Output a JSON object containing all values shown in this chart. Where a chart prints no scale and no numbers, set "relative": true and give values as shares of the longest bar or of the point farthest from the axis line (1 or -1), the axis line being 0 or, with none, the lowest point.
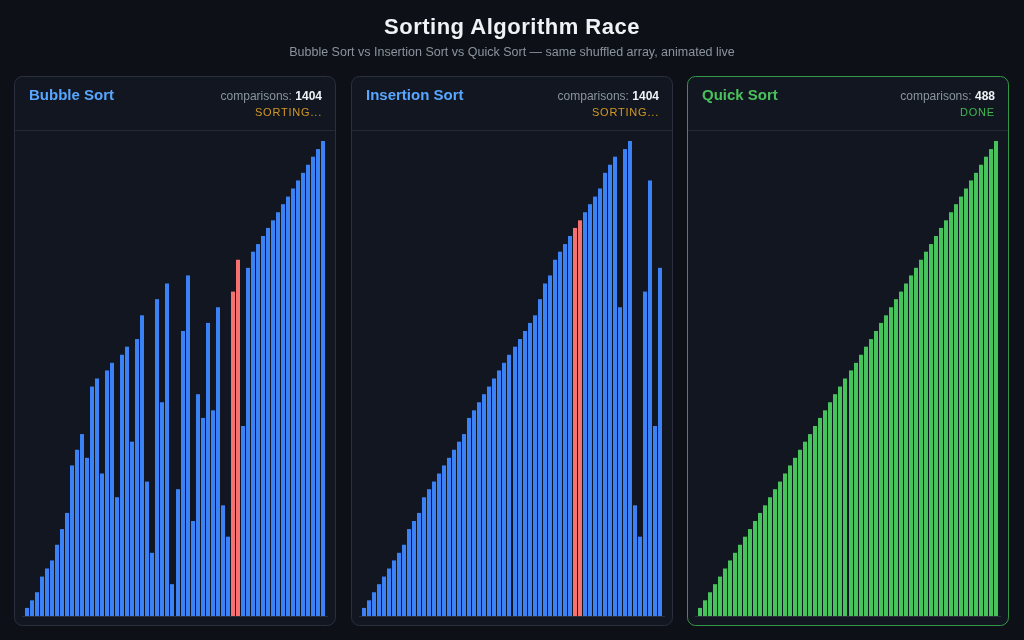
{
  "chart_data": [
    {
      "type": "other",
      "title": "Sorting Algorithm Race",
      "subtitle": "Bubble Sort vs Insertion Sort vs Quick Sort — same shuffled array, animated live"
    },
    {
      "type": "bar",
      "title": "Bubble Sort",
      "relative": true,
      "annotations": [
        "comparisons: 1404",
        "SORTING..."
      ],
      "categories": [
        null,
        null,
        null,
        null,
        null,
        null,
        null,
        null,
        null,
        null,
        null,
        null,
        null,
        null,
        null,
        null,
        null,
        null,
        null,
        null,
        null,
        null,
        null,
        null,
        null,
        null,
        null,
        null,
        null,
        null,
        null,
        null,
        null,
        null,
        null,
        null,
        null,
        null,
        null,
        null,
        null,
        null,
        null,
        null,
        null,
        null,
        null,
        null,
        null,
        null,
        null,
        null,
        null,
        null,
        null,
        null,
        null,
        null,
        null,
        null
      ],
      "values": [
        0.017,
        0.033,
        0.05,
        0.083,
        0.1,
        0.117,
        0.15,
        0.183,
        0.217,
        0.317,
        0.35,
        0.383,
        0.333,
        0.483,
        0.5,
        0.3,
        0.517,
        0.533,
        0.25,
        0.55,
        0.567,
        0.367,
        0.583,
        0.633,
        0.283,
        0.133,
        0.667,
        0.45,
        0.7,
        0.067,
        0.267,
        0.6,
        0.717,
        0.2,
        0.467,
        0.417,
        0.617,
        0.433,
        0.65,
        0.233,
        0.167,
        0.683,
        0.75,
        0.4,
        0.733,
        0.767,
        0.783,
        0.8,
        0.817,
        0.833,
        0.85,
        0.867,
        0.883,
        0.9,
        0.917,
        0.933,
        0.95,
        0.967,
        0.983,
        1
      ],
      "colors": [
        "#3b82f6",
        "#3b82f6",
        "#3b82f6",
        "#3b82f6",
        "#3b82f6",
        "#3b82f6",
        "#3b82f6",
        "#3b82f6",
        "#3b82f6",
        "#3b82f6",
        "#3b82f6",
        "#3b82f6",
        "#3b82f6",
        "#3b82f6",
        "#3b82f6",
        "#3b82f6",
        "#3b82f6",
        "#3b82f6",
        "#3b82f6",
        "#3b82f6",
        "#3b82f6",
        "#3b82f6",
        "#3b82f6",
        "#3b82f6",
        "#3b82f6",
        "#3b82f6",
        "#3b82f6",
        "#3b82f6",
        "#3b82f6",
        "#3b82f6",
        "#3b82f6",
        "#3b82f6",
        "#3b82f6",
        "#3b82f6",
        "#3b82f6",
        "#3b82f6",
        "#3b82f6",
        "#3b82f6",
        "#3b82f6",
        "#3b82f6",
        "#3b82f6",
        "#f87171",
        "#f87171",
        "#3b82f6",
        "#3b82f6",
        "#3b82f6",
        "#3b82f6",
        "#3b82f6",
        "#3b82f6",
        "#3b82f6",
        "#3b82f6",
        "#3b82f6",
        "#3b82f6",
        "#3b82f6",
        "#3b82f6",
        "#3b82f6",
        "#3b82f6",
        "#3b82f6",
        "#3b82f6",
        "#3b82f6"
      ]
    },
    {
      "type": "bar",
      "title": "Insertion Sort",
      "relative": true,
      "annotations": [
        "comparisons: 1404",
        "SORTING..."
      ],
      "categories": [
        null,
        null,
        null,
        null,
        null,
        null,
        null,
        null,
        null,
        null,
        null,
        null,
        null,
        null,
        null,
        null,
        null,
        null,
        null,
        null,
        null,
        null,
        null,
        null,
        null,
        null,
        null,
        null,
        null,
        null,
        null,
        null,
        null,
        null,
        null,
        null,
        null,
        null,
        null,
        null,
        null,
        null,
        null,
        null,
        null,
        null,
        null,
        null,
        null,
        null,
        null,
        null,
        null,
        null,
        null,
        null,
        null,
        null,
        null,
        null
      ],
      "values": [
        0.017,
        0.033,
        0.05,
        0.067,
        0.083,
        0.1,
        0.117,
        0.133,
        0.15,
        0.183,
        0.2,
        0.217,
        0.25,
        0.267,
        0.283,
        0.3,
        0.317,
        0.333,
        0.35,
        0.367,
        0.383,
        0.417,
        0.433,
        0.45,
        0.467,
        0.483,
        0.5,
        0.517,
        0.533,
        0.55,
        0.567,
        0.583,
        0.6,
        0.617,
        0.633,
        0.667,
        0.7,
        0.717,
        0.75,
        0.767,
        0.783,
        0.8,
        0.817,
        0.833,
        0.85,
        0.867,
        0.883,
        0.9,
        0.933,
        0.95,
        0.967,
        0.65,
        0.983,
        1,
        0.233,
        0.167,
        0.683,
        0.917,
        0.4,
        0.733
      ],
      "colors": [
        "#3b82f6",
        "#3b82f6",
        "#3b82f6",
        "#3b82f6",
        "#3b82f6",
        "#3b82f6",
        "#3b82f6",
        "#3b82f6",
        "#3b82f6",
        "#3b82f6",
        "#3b82f6",
        "#3b82f6",
        "#3b82f6",
        "#3b82f6",
        "#3b82f6",
        "#3b82f6",
        "#3b82f6",
        "#3b82f6",
        "#3b82f6",
        "#3b82f6",
        "#3b82f6",
        "#3b82f6",
        "#3b82f6",
        "#3b82f6",
        "#3b82f6",
        "#3b82f6",
        "#3b82f6",
        "#3b82f6",
        "#3b82f6",
        "#3b82f6",
        "#3b82f6",
        "#3b82f6",
        "#3b82f6",
        "#3b82f6",
        "#3b82f6",
        "#3b82f6",
        "#3b82f6",
        "#3b82f6",
        "#3b82f6",
        "#3b82f6",
        "#3b82f6",
        "#3b82f6",
        "#f87171",
        "#f87171",
        "#3b82f6",
        "#3b82f6",
        "#3b82f6",
        "#3b82f6",
        "#3b82f6",
        "#3b82f6",
        "#3b82f6",
        "#3b82f6",
        "#3b82f6",
        "#3b82f6",
        "#3b82f6",
        "#3b82f6",
        "#3b82f6",
        "#3b82f6",
        "#3b82f6",
        "#3b82f6"
      ]
    },
    {
      "type": "bar",
      "title": "Quick Sort",
      "relative": true,
      "annotations": [
        "comparisons: 488",
        "DONE"
      ],
      "categories": [
        null,
        null,
        null,
        null,
        null,
        null,
        null,
        null,
        null,
        null,
        null,
        null,
        null,
        null,
        null,
        null,
        null,
        null,
        null,
        null,
        null,
        null,
        null,
        null,
        null,
        null,
        null,
        null,
        null,
        null,
        null,
        null,
        null,
        null,
        null,
        null,
        null,
        null,
        null,
        null,
        null,
        null,
        null,
        null,
        null,
        null,
        null,
        null,
        null,
        null,
        null,
        null,
        null,
        null,
        null,
        null,
        null,
        null,
        null,
        null
      ],
      "values": [
        0.017,
        0.033,
        0.05,
        0.067,
        0.083,
        0.1,
        0.117,
        0.133,
        0.15,
        0.167,
        0.183,
        0.2,
        0.217,
        0.233,
        0.25,
        0.267,
        0.283,
        0.3,
        0.317,
        0.333,
        0.35,
        0.367,
        0.383,
        0.4,
        0.417,
        0.433,
        0.45,
        0.467,
        0.483,
        0.5,
        0.517,
        0.533,
        0.55,
        0.567,
        0.583,
        0.6,
        0.617,
        0.633,
        0.65,
        0.667,
        0.683,
        0.7,
        0.717,
        0.733,
        0.75,
        0.767,
        0.783,
        0.8,
        0.817,
        0.833,
        0.85,
        0.867,
        0.883,
        0.9,
        0.917,
        0.933,
        0.95,
        0.967,
        0.983,
        1
      ],
      "colors": [
        "#46c35a",
        "#46c35a",
        "#46c35a",
        "#46c35a",
        "#46c35a",
        "#46c35a",
        "#46c35a",
        "#46c35a",
        "#46c35a",
        "#46c35a",
        "#46c35a",
        "#46c35a",
        "#46c35a",
        "#46c35a",
        "#46c35a",
        "#46c35a",
        "#46c35a",
        "#46c35a",
        "#46c35a",
        "#46c35a",
        "#46c35a",
        "#46c35a",
        "#46c35a",
        "#46c35a",
        "#46c35a",
        "#46c35a",
        "#46c35a",
        "#46c35a",
        "#46c35a",
        "#46c35a",
        "#46c35a",
        "#46c35a",
        "#46c35a",
        "#46c35a",
        "#46c35a",
        "#46c35a",
        "#46c35a",
        "#46c35a",
        "#46c35a",
        "#46c35a",
        "#46c35a",
        "#46c35a",
        "#46c35a",
        "#46c35a",
        "#46c35a",
        "#46c35a",
        "#46c35a",
        "#46c35a",
        "#46c35a",
        "#46c35a",
        "#46c35a",
        "#46c35a",
        "#46c35a",
        "#46c35a",
        "#46c35a",
        "#46c35a",
        "#46c35a",
        "#46c35a",
        "#46c35a",
        "#46c35a"
      ]
    }
  ]
}
